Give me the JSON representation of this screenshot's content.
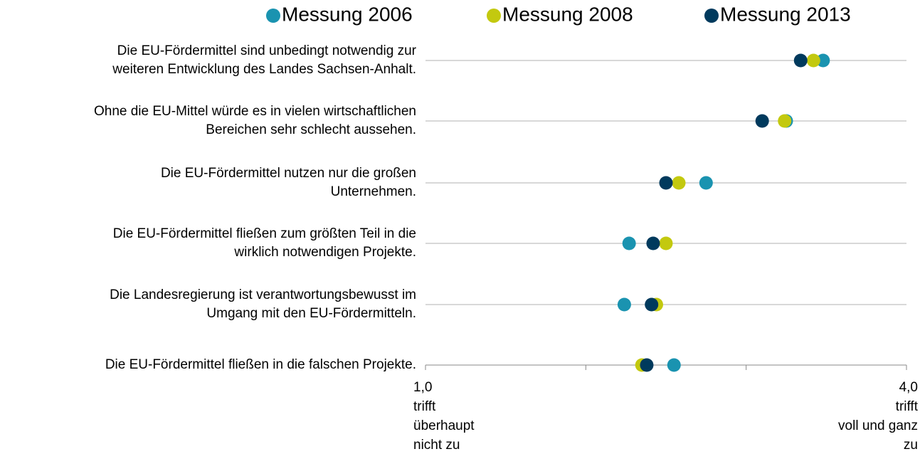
{
  "chart_data": {
    "type": "dot",
    "categories": [
      [
        "Die EU-Fördermittel sind unbedingt notwendig zur",
        "weiteren Entwicklung des Landes Sachsen-Anhalt."
      ],
      [
        "Ohne die EU-Mittel würde es in vielen wirtschaftlichen",
        "Bereichen sehr schlecht aussehen."
      ],
      [
        "Die EU-Fördermittel nutzen nur die großen",
        "Unternehmen."
      ],
      [
        "Die EU-Fördermittel fließen zum größten Teil in die",
        "wirklich notwendigen Projekte."
      ],
      [
        "Die Landesregierung ist verantwortungsbewusst im",
        "Umgang mit den EU-Fördermitteln."
      ],
      [
        "Die EU-Fördermittel fließen in die falschen Projekte."
      ]
    ],
    "series": [
      {
        "name": "Messung 2006",
        "color": "#1a93b0",
        "values": [
          3.48,
          3.25,
          2.75,
          2.27,
          2.24,
          2.55
        ]
      },
      {
        "name": "Messung 2008",
        "color": "#c3c90f",
        "values": [
          3.42,
          3.24,
          2.58,
          2.5,
          2.44,
          2.35
        ]
      },
      {
        "name": "Messung 2013",
        "color": "#003a5d",
        "values": [
          3.34,
          3.1,
          2.5,
          2.42,
          2.41,
          2.38
        ]
      }
    ],
    "xlim": [
      1,
      4
    ],
    "xticks": [
      {
        "value": 1,
        "label": "1,0"
      },
      {
        "value": 2,
        "label": null
      },
      {
        "value": 3,
        "label": null
      },
      {
        "value": 4,
        "label": "4,0"
      }
    ],
    "xlim_labels": [
      [
        "trifft",
        "überhaupt",
        "nicht zu"
      ],
      [
        "trifft",
        "voll und ganz",
        "zu"
      ]
    ],
    "grid": true,
    "legend": "top"
  }
}
